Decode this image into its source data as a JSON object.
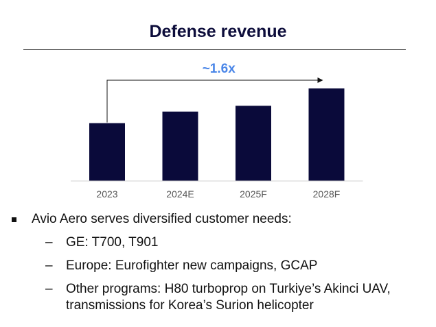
{
  "title": "Defense revenue",
  "chart_data": {
    "type": "bar",
    "categories": [
      "2023",
      "2024E",
      "2025F",
      "2028F"
    ],
    "values": [
      1.0,
      1.2,
      1.3,
      1.6
    ],
    "title": "Defense revenue",
    "xlabel": "",
    "ylabel": "",
    "ylim": [
      0,
      1.6
    ],
    "grid": false,
    "bar_color": "#0a0a3a",
    "annotation": {
      "text": "~1.6x",
      "color": "#4a86e8",
      "from_category": "2023",
      "to_category": "2028F"
    }
  },
  "bullets": {
    "main": "Avio Aero serves diversified customer needs:",
    "dash": "–",
    "items": [
      "GE: T700, T901",
      "Europe: Eurofighter new campaigns, GCAP",
      "Other programs: H80 turboprop on Turkiye’s Akinci UAV, transmissions for Korea’s Surion helicopter"
    ]
  }
}
